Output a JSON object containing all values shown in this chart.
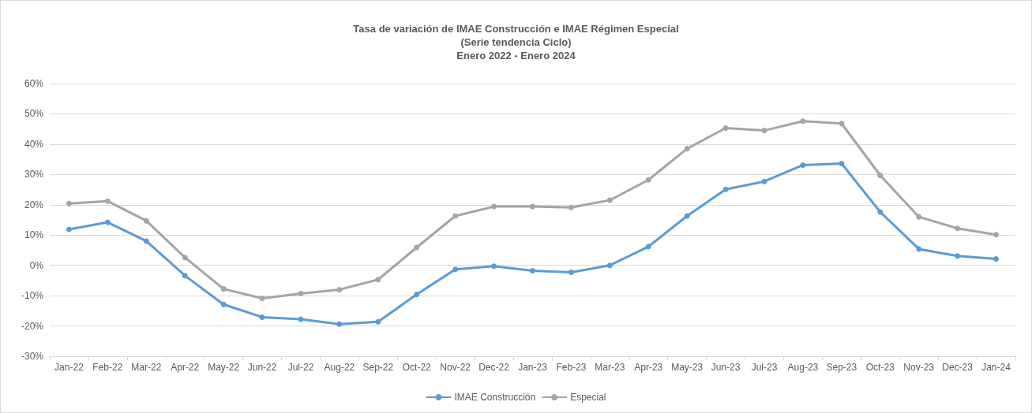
{
  "chart_data": {
    "type": "line",
    "title": "Tasa de variación de IMAE Construcción e IMAE Régimen Especial\n(Serie tendencia Ciclo)\nEnero 2022 - Enero 2024",
    "categories": [
      "Jan-22",
      "Feb-22",
      "Mar-22",
      "Apr-22",
      "May-22",
      "Jun-22",
      "Jul-22",
      "Aug-22",
      "Sep-22",
      "Oct-22",
      "Nov-22",
      "Dec-22",
      "Jan-23",
      "Feb-23",
      "Mar-23",
      "Apr-23",
      "May-23",
      "Jun-23",
      "Jul-23",
      "Aug-23",
      "Sep-23",
      "Oct-23",
      "Nov-23",
      "Dec-23",
      "Jan-24"
    ],
    "series": [
      {
        "name": "IMAE Construcción",
        "color": "#5b9bd5",
        "values": [
          11.9,
          14.2,
          8.0,
          -3.4,
          -12.9,
          -17.1,
          -17.8,
          -19.4,
          -18.6,
          -9.6,
          -1.3,
          -0.3,
          -1.8,
          -2.3,
          0,
          6.2,
          16.3,
          25.1,
          27.7,
          33.1,
          33.6,
          17.6,
          5.4,
          3.1,
          2.1
        ]
      },
      {
        "name": "Especial",
        "color": "#a5a5a5",
        "values": [
          20.4,
          21.2,
          14.7,
          2.6,
          -7.8,
          -10.9,
          -9.3,
          -8.0,
          -4.7,
          5.9,
          16.3,
          19.4,
          19.4,
          19.1,
          21.5,
          28.2,
          38.5,
          45.3,
          44.5,
          47.6,
          46.8,
          29.7,
          16.0,
          12.2,
          10.1
        ]
      }
    ],
    "ylim": [
      -30,
      60
    ],
    "yticks": [
      {
        "value": -30,
        "label": "-30%"
      },
      {
        "value": -20,
        "label": "-20%"
      },
      {
        "value": -10,
        "label": "-10%"
      },
      {
        "value": 0,
        "label": "0%"
      },
      {
        "value": 10,
        "label": "10%"
      },
      {
        "value": 20,
        "label": "20%"
      },
      {
        "value": 30,
        "label": "30%"
      },
      {
        "value": 40,
        "label": "40%"
      },
      {
        "value": 50,
        "label": "50%"
      },
      {
        "value": 60,
        "label": "60%"
      }
    ],
    "grid": "y",
    "legend": "bottom",
    "marker": "circle",
    "line_style": "solid"
  }
}
